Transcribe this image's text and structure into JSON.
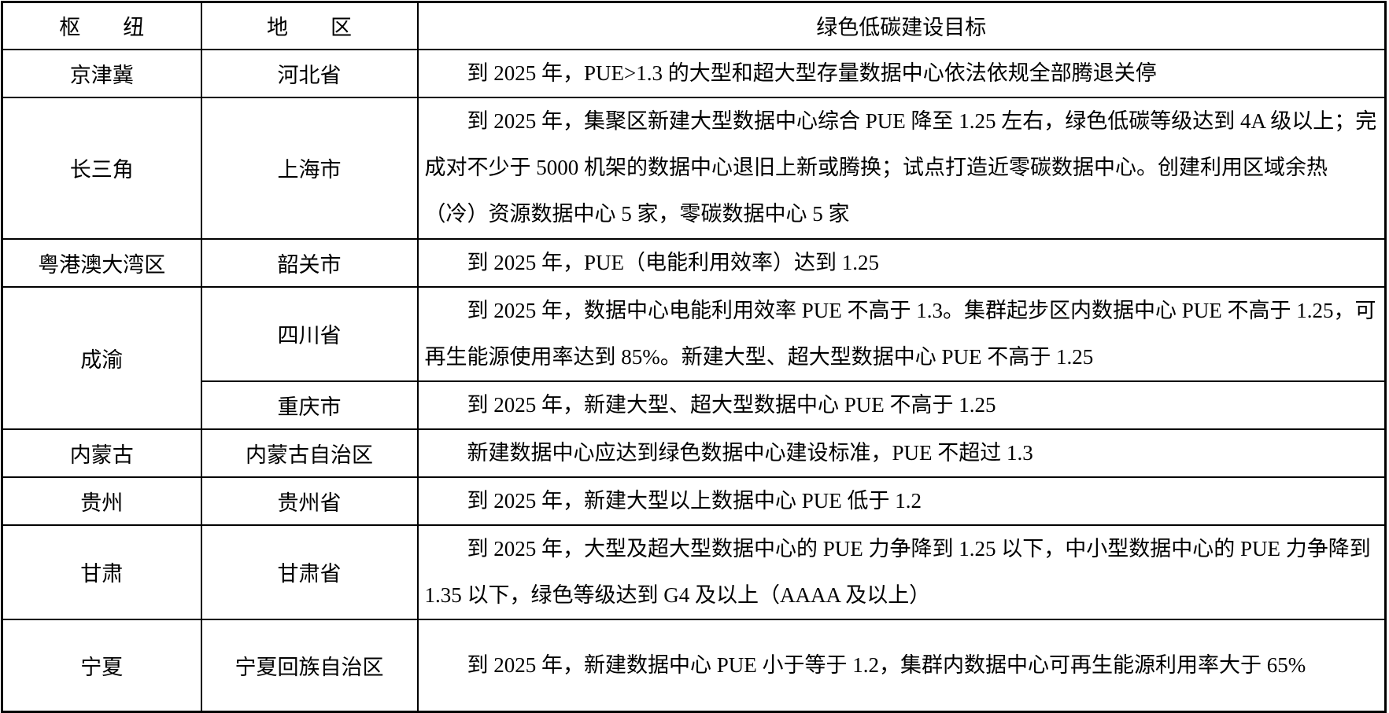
{
  "headers": {
    "hub": "枢　　纽",
    "region": "地　　区",
    "target": "绿色低碳建设目标"
  },
  "rows": [
    {
      "hub": "京津冀",
      "region": "河北省",
      "target": "到 2025 年，PUE>1.3 的大型和超大型存量数据中心依法依规全部腾退关停"
    },
    {
      "hub": "长三角",
      "region": "上海市",
      "target": "到 2025 年，集聚区新建大型数据中心综合 PUE 降至 1.25 左右，绿色低碳等级达到 4A 级以上；完成对不少于 5000 机架的数据中心退旧上新或腾换；试点打造近零碳数据中心。创建利用区域余热（冷）资源数据中心 5 家，零碳数据中心 5 家"
    },
    {
      "hub": "粤港澳大湾区",
      "region": "韶关市",
      "target": "到 2025 年，PUE（电能利用效率）达到 1.25"
    },
    {
      "hub": "成渝",
      "region": "四川省",
      "target": "到 2025 年，数据中心电能利用效率 PUE 不高于 1.3。集群起步区内数据中心 PUE 不高于 1.25，可再生能源使用率达到 85%。新建大型、超大型数据中心 PUE 不高于 1.25"
    },
    {
      "hub": "",
      "region": "重庆市",
      "target": "到 2025 年，新建大型、超大型数据中心 PUE 不高于 1.25"
    },
    {
      "hub": "内蒙古",
      "region": "内蒙古自治区",
      "target": "新建数据中心应达到绿色数据中心建设标准，PUE 不超过 1.3"
    },
    {
      "hub": "贵州",
      "region": "贵州省",
      "target": "到 2025 年，新建大型以上数据中心 PUE 低于 1.2"
    },
    {
      "hub": "甘肃",
      "region": "甘肃省",
      "target": "到 2025 年，大型及超大型数据中心的 PUE 力争降到 1.25 以下，中小型数据中心的 PUE 力争降到 1.35 以下，绿色等级达到 G4 及以上（AAAA 及以上）"
    },
    {
      "hub": "宁夏",
      "region": "宁夏回族自治区",
      "target": "到 2025 年，新建数据中心 PUE 小于等于 1.2，集群内数据中心可再生能源利用率大于 65%"
    }
  ]
}
